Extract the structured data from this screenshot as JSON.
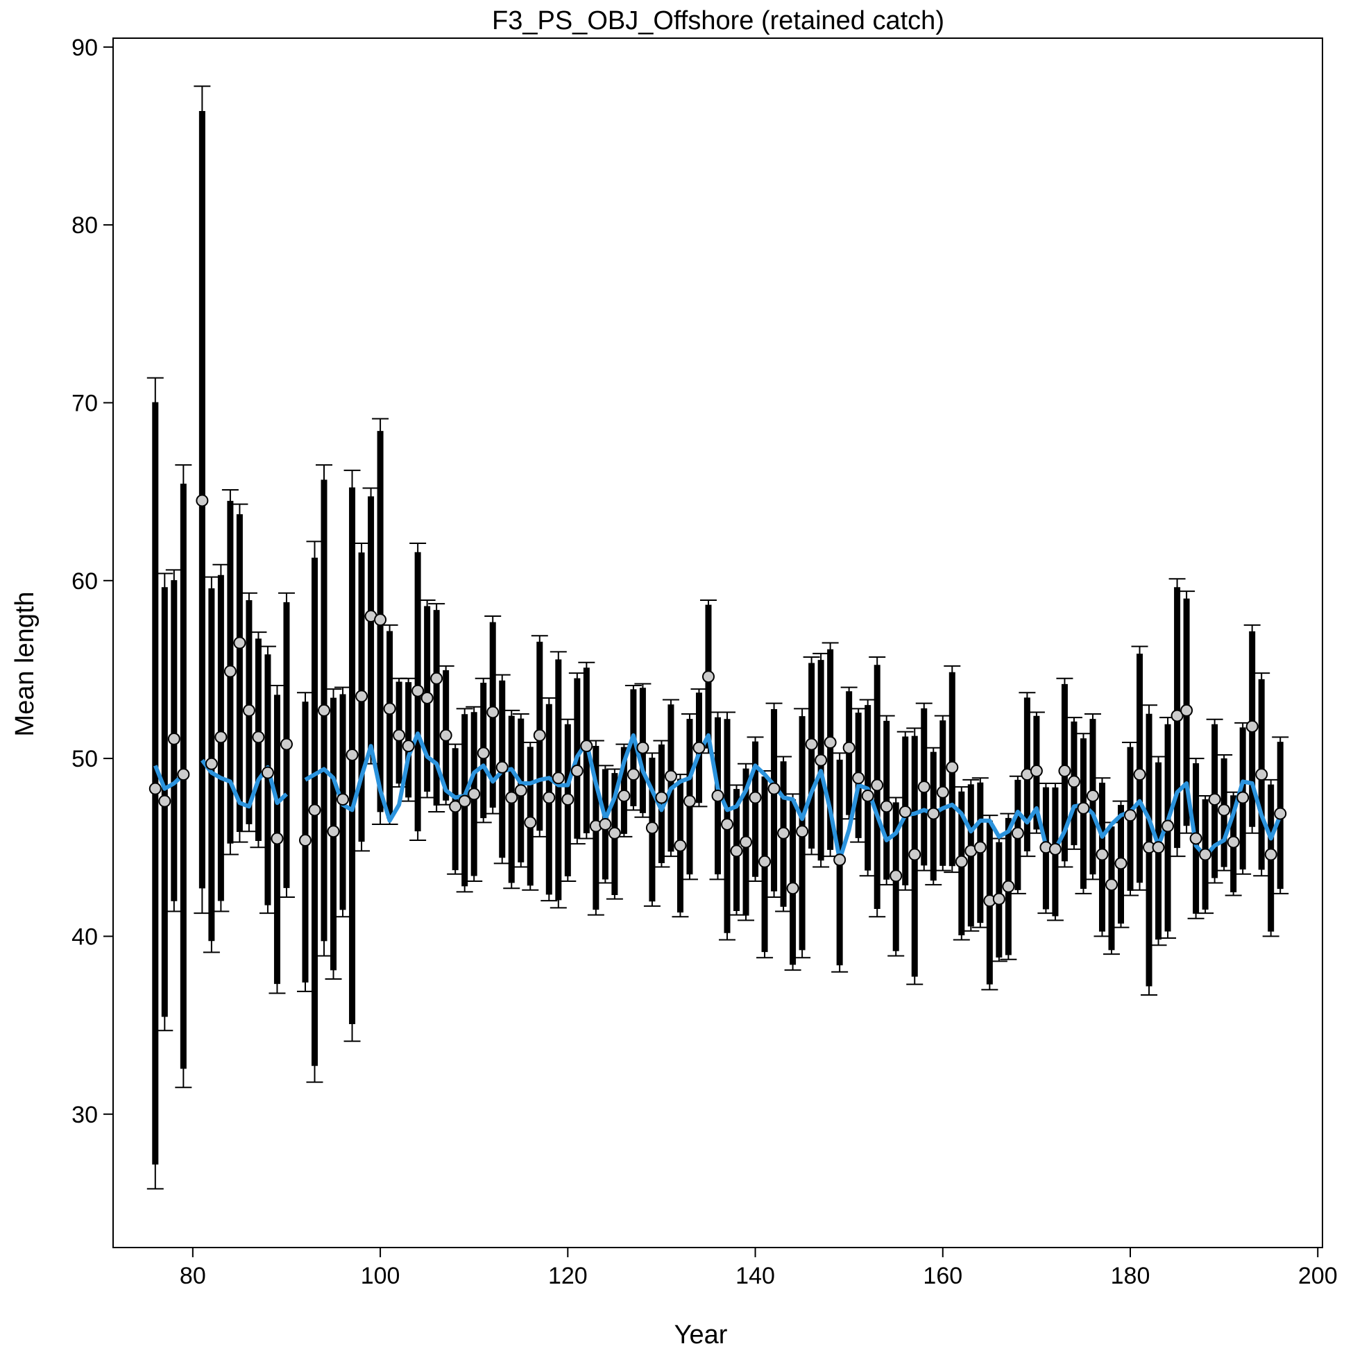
{
  "chart_data": {
    "type": "scatter",
    "title": "F3_PS_OBJ_Offshore (retained catch)",
    "xlabel": "Year",
    "ylabel": "Mean length",
    "xlim": [
      71.5,
      200.5
    ],
    "ylim": [
      22.5,
      90.5
    ],
    "x_ticks": [
      80,
      100,
      120,
      140,
      160,
      180,
      200
    ],
    "y_ticks": [
      30,
      40,
      50,
      60,
      70,
      80,
      90
    ],
    "grid": false,
    "legend": "none",
    "colors": {
      "observed_fill": "#cccccc",
      "observed_edge": "#000000",
      "interval": "#000000",
      "expected_line": "#2b93dd"
    },
    "series": [
      {
        "kind": "observed",
        "x": [
          76,
          77,
          78,
          79,
          81,
          82,
          83,
          84,
          85,
          86,
          87,
          88,
          89,
          90,
          92,
          93,
          94,
          95,
          96,
          97,
          98,
          99,
          100,
          101,
          102,
          103,
          104,
          105,
          106,
          107,
          108,
          109,
          110,
          111,
          112,
          113,
          114,
          115,
          116,
          117,
          118,
          119,
          120,
          121,
          122,
          123,
          124,
          125,
          126,
          127,
          128,
          129,
          130,
          131,
          132,
          133,
          134,
          135,
          136,
          137,
          138,
          139,
          140,
          141,
          142,
          143,
          144,
          145,
          146,
          147,
          148,
          149,
          150,
          151,
          152,
          153,
          154,
          155,
          156,
          157,
          158,
          159,
          160,
          161,
          162,
          163,
          164,
          165,
          166,
          167,
          168,
          169,
          170,
          171,
          172,
          173,
          174,
          175,
          176,
          177,
          178,
          179,
          180,
          181,
          182,
          183,
          184,
          185,
          186,
          187,
          188,
          189,
          190,
          191,
          192,
          193,
          194,
          195,
          196
        ],
        "y": [
          48.3,
          47.6,
          51.1,
          49.1,
          64.5,
          49.7,
          51.2,
          54.9,
          56.5,
          52.7,
          51.2,
          49.2,
          45.5,
          50.8,
          45.4,
          47.1,
          52.7,
          45.9,
          47.7,
          50.2,
          53.5,
          58.0,
          57.8,
          52.8,
          51.3,
          50.7,
          53.8,
          53.4,
          54.5,
          51.3,
          47.3,
          47.6,
          48.0,
          50.3,
          52.6,
          49.5,
          47.8,
          48.2,
          46.4,
          51.3,
          47.8,
          48.9,
          47.7,
          49.3,
          50.7,
          46.2,
          46.3,
          45.8,
          47.9,
          49.1,
          50.6,
          46.1,
          47.8,
          49.0,
          45.1,
          47.6,
          50.6,
          54.6,
          47.9,
          46.3,
          44.8,
          45.3,
          47.8,
          44.2,
          48.3,
          45.8,
          42.7,
          45.9,
          50.8,
          49.9,
          50.9,
          44.3,
          50.6,
          48.9,
          47.9,
          48.5,
          47.3,
          43.4,
          47.0,
          44.6,
          48.4,
          46.9,
          48.1,
          49.5,
          44.2,
          44.8,
          45.0,
          42.0,
          42.1,
          42.8,
          45.8,
          49.1,
          49.3,
          45.0,
          44.9,
          49.3,
          48.7,
          47.2,
          47.9,
          44.6,
          42.9,
          44.1,
          46.8,
          49.1,
          45.0,
          45.0,
          46.2,
          52.4,
          52.7,
          45.5,
          44.6,
          47.7,
          47.1,
          45.3,
          47.8,
          51.8,
          49.1,
          44.6,
          46.9
        ],
        "ci_lower": [
          25.8,
          34.7,
          41.4,
          31.5,
          41.3,
          39.1,
          41.4,
          44.6,
          45.3,
          45.9,
          45.0,
          41.3,
          36.8,
          42.2,
          36.9,
          31.8,
          38.9,
          37.6,
          41.1,
          34.1,
          44.8,
          49.7,
          46.3,
          46.3,
          48.4,
          47.6,
          45.4,
          47.8,
          47.0,
          47.4,
          43.5,
          42.5,
          43.1,
          46.4,
          46.9,
          44.1,
          42.7,
          43.9,
          42.6,
          45.6,
          42.0,
          41.6,
          43.1,
          45.2,
          45.5,
          41.2,
          43.0,
          42.1,
          45.6,
          47.1,
          46.7,
          41.7,
          43.9,
          44.5,
          41.1,
          43.2,
          47.3,
          50.3,
          43.2,
          39.8,
          41.2,
          40.9,
          43.1,
          38.8,
          42.2,
          41.4,
          38.1,
          38.8,
          44.6,
          43.9,
          44.5,
          38.0,
          46.6,
          45.3,
          43.4,
          41.1,
          42.9,
          38.9,
          42.6,
          37.3,
          43.7,
          42.9,
          43.7,
          43.6,
          39.8,
          40.3,
          40.5,
          37.0,
          38.6,
          38.7,
          42.4,
          44.5,
          45.8,
          41.3,
          40.9,
          43.9,
          44.9,
          42.4,
          43.2,
          40.0,
          39.0,
          40.5,
          42.3,
          42.6,
          36.7,
          39.5,
          39.9,
          44.5,
          45.8,
          41.0,
          41.3,
          43.0,
          43.7,
          42.3,
          43.5,
          45.8,
          43.4,
          40.0,
          42.4
        ],
        "ci_upper": [
          71.4,
          60.4,
          60.6,
          66.5,
          87.8,
          60.2,
          60.9,
          65.1,
          64.3,
          59.3,
          57.1,
          56.3,
          54.1,
          59.3,
          53.7,
          62.2,
          66.5,
          53.9,
          54.0,
          66.2,
          62.1,
          65.2,
          69.1,
          57.5,
          54.5,
          54.5,
          62.1,
          58.9,
          58.7,
          55.2,
          50.8,
          52.8,
          52.9,
          54.5,
          58.0,
          54.7,
          52.7,
          52.5,
          50.9,
          56.9,
          53.4,
          56.0,
          52.2,
          54.8,
          55.4,
          51.0,
          49.6,
          49.4,
          50.8,
          54.1,
          54.2,
          50.3,
          51.0,
          53.3,
          49.1,
          52.5,
          53.9,
          58.9,
          52.6,
          52.6,
          48.5,
          49.7,
          51.2,
          49.3,
          53.1,
          50.1,
          48.0,
          52.8,
          55.7,
          55.9,
          56.5,
          50.3,
          54.0,
          52.8,
          53.3,
          55.7,
          52.4,
          47.8,
          51.5,
          51.7,
          53.1,
          50.6,
          52.4,
          55.2,
          48.4,
          48.8,
          48.9,
          46.8,
          45.5,
          46.9,
          49.0,
          53.7,
          52.6,
          48.6,
          48.6,
          54.5,
          52.3,
          51.4,
          52.5,
          48.9,
          46.4,
          47.6,
          50.9,
          56.3,
          53.0,
          50.1,
          52.3,
          60.1,
          59.4,
          50.0,
          47.9,
          52.2,
          50.2,
          48.1,
          52.0,
          57.5,
          54.8,
          48.8,
          51.2
        ]
      },
      {
        "kind": "expected",
        "x": [
          76,
          77,
          78,
          79,
          81,
          82,
          83,
          84,
          85,
          86,
          87,
          88,
          89,
          90,
          92,
          93,
          94,
          95,
          96,
          97,
          98,
          99,
          100,
          101,
          102,
          103,
          104,
          105,
          106,
          107,
          108,
          109,
          110,
          111,
          112,
          113,
          114,
          115,
          116,
          117,
          118,
          119,
          120,
          121,
          122,
          123,
          124,
          125,
          126,
          127,
          128,
          129,
          130,
          131,
          132,
          133,
          134,
          135,
          136,
          137,
          138,
          139,
          140,
          141,
          142,
          143,
          144,
          145,
          146,
          147,
          148,
          149,
          150,
          151,
          152,
          153,
          154,
          155,
          156,
          157,
          158,
          159,
          160,
          161,
          162,
          163,
          164,
          165,
          166,
          167,
          168,
          169,
          170,
          171,
          172,
          173,
          174,
          175,
          176,
          177,
          178,
          179,
          180,
          181,
          182,
          183,
          184,
          185,
          186,
          187,
          188,
          189,
          190,
          191,
          192,
          193,
          194,
          195,
          196
        ],
        "y": [
          49.6,
          48.3,
          48.6,
          49.1,
          49.9,
          49.2,
          48.9,
          48.7,
          47.5,
          47.3,
          48.8,
          49.5,
          47.5,
          48.0,
          48.8,
          49.1,
          49.4,
          48.9,
          47.4,
          47.1,
          49.0,
          50.7,
          48.2,
          46.5,
          47.4,
          50.1,
          51.4,
          50.1,
          49.7,
          48.2,
          47.8,
          47.9,
          49.2,
          49.6,
          48.7,
          49.3,
          49.4,
          48.6,
          48.6,
          48.8,
          48.9,
          48.5,
          48.5,
          50.1,
          50.9,
          48.6,
          46.6,
          47.8,
          49.8,
          51.3,
          49.3,
          48.2,
          47.1,
          48.3,
          48.7,
          48.9,
          50.3,
          51.3,
          48.3,
          47.1,
          47.3,
          48.2,
          49.6,
          49.1,
          48.5,
          47.8,
          47.7,
          46.6,
          48.1,
          49.3,
          47.1,
          44.3,
          46.0,
          48.5,
          48.3,
          46.8,
          45.4,
          45.8,
          46.8,
          46.9,
          47.1,
          46.9,
          47.2,
          47.4,
          46.9,
          45.9,
          46.5,
          46.5,
          45.6,
          45.9,
          47.0,
          46.4,
          47.2,
          45.1,
          44.9,
          45.9,
          47.3,
          47.4,
          46.9,
          45.6,
          46.3,
          46.8,
          47.0,
          47.6,
          46.6,
          45.1,
          46.5,
          48.1,
          48.6,
          45.1,
          44.5,
          45.1,
          45.4,
          46.9,
          48.7,
          48.6,
          46.8,
          45.5,
          46.8
        ]
      }
    ]
  }
}
